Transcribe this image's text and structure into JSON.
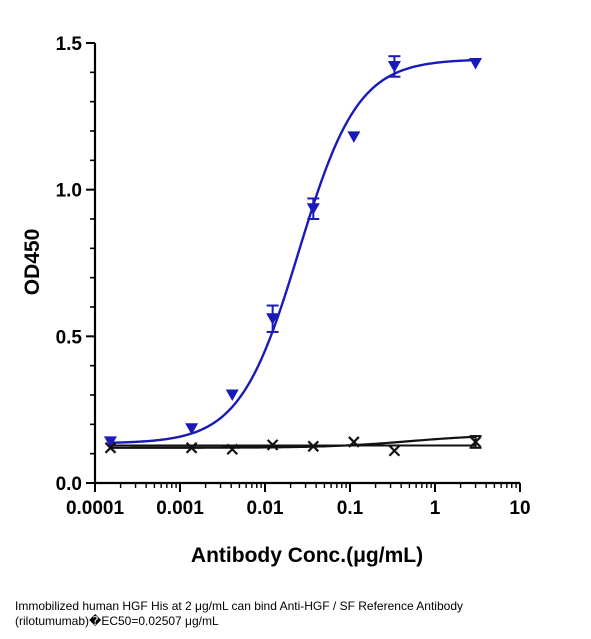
{
  "chart_data": {
    "type": "scatter",
    "xlabel": "Antibody Conc.(μg/mL)",
    "ylabel": "OD450",
    "x_scale": "log",
    "xlim": [
      0.0001,
      10
    ],
    "ylim": [
      0,
      1.5
    ],
    "x_ticks": [
      0.0001,
      0.001,
      0.01,
      0.1,
      1,
      10
    ],
    "x_tick_labels": [
      "0.0001",
      "0.001",
      "0.01",
      "0.1",
      "1",
      "10"
    ],
    "y_ticks": [
      0,
      0.5,
      1.0,
      1.5
    ],
    "y_tick_labels": [
      "0.0",
      "0.5",
      "1.0",
      "1.5"
    ],
    "grid": false,
    "series": [
      {
        "color": "#1a1ab8",
        "marker": "triangle-down",
        "fit": "4PL",
        "x": [
          0.000152,
          0.00137,
          0.00412,
          0.0123,
          0.037,
          0.111,
          0.333,
          3.0
        ],
        "y": [
          0.14,
          0.185,
          0.3,
          0.56,
          0.935,
          1.18,
          1.42,
          1.43
        ],
        "error": [
          0.0,
          0.0,
          0.0,
          0.045,
          0.035,
          0.0,
          0.035,
          0.0
        ]
      },
      {
        "color": "#111111",
        "marker": "x",
        "fit": "line",
        "x": [
          0.000152,
          0.00137,
          0.00412,
          0.0123,
          0.037,
          0.111,
          0.333,
          3.0
        ],
        "y": [
          0.12,
          0.12,
          0.115,
          0.13,
          0.125,
          0.14,
          0.11,
          0.14
        ],
        "error": [
          0,
          0,
          0,
          0,
          0,
          0,
          0,
          0.02
        ]
      }
    ],
    "caption_lines": [
      "Immobilized human HGF His at 2 μg/mL can bind  Anti-HGF / SF Reference Antibody",
      "(rilotumumab)�EC50=0.02507 μg/mL"
    ]
  }
}
